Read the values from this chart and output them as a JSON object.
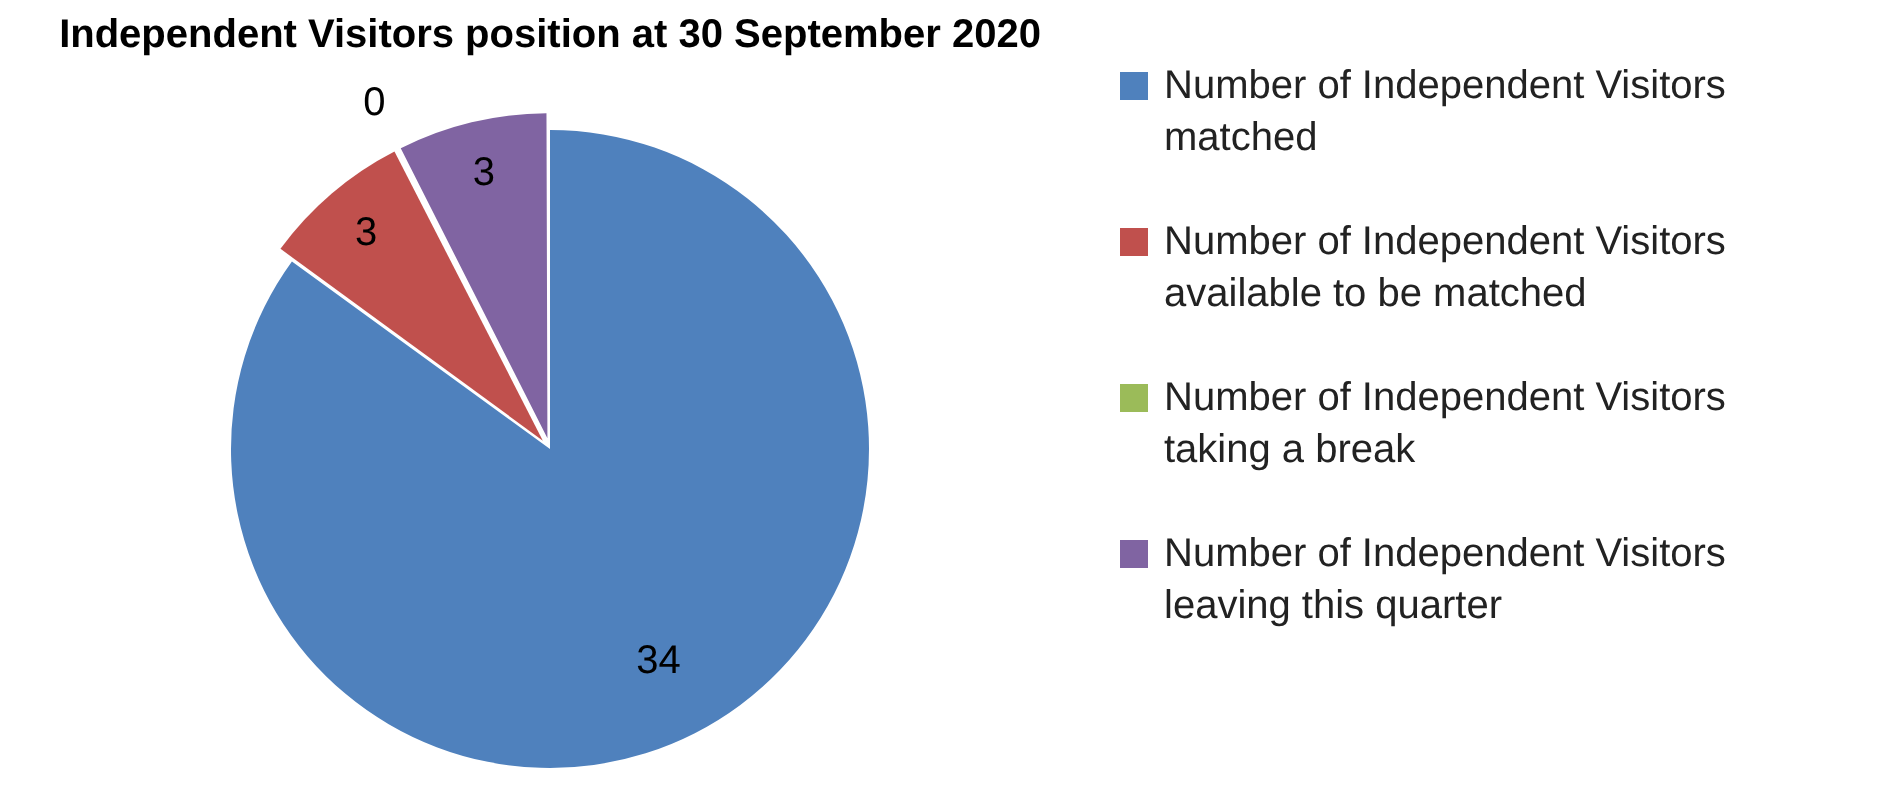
{
  "chart_data": {
    "type": "pie",
    "title": "Independent Visitors position at 30 September 2020",
    "categories": [
      "Number of Independent Visitors matched",
      "Number of Independent Visitors available to be matched",
      "Number of Independent Visitors taking a break",
      "Number of Independent Visitors leaving this quarter"
    ],
    "values": [
      34,
      3,
      0,
      3
    ],
    "colors": [
      "#4f81bd",
      "#c0504d",
      "#9bbb59",
      "#8064a2"
    ],
    "value_labels": [
      "34",
      "3",
      "0",
      "3"
    ],
    "legend": "right"
  }
}
